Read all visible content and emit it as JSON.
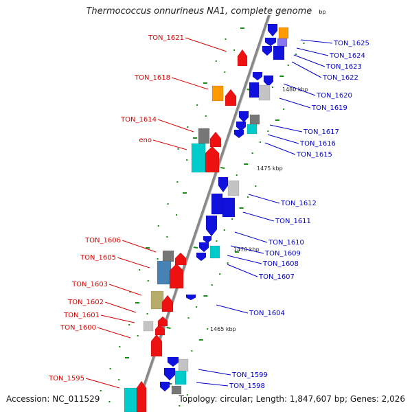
{
  "title": "Thermococcus onnurineus NA1, complete genome",
  "title_tail": "bp",
  "footer": {
    "accession": "Accession: NC_011529",
    "summary": "Topology: circular; Length: 1,847,607 bp; Genes: 2,026"
  },
  "colors": {
    "forward_gene": "#ee1111",
    "reverse_gene": "#1111dd",
    "cyan_gene": "#00cccc",
    "orange_gene": "#ff9900",
    "gray_gene": "#777777",
    "light_gray_gene": "#c4c4c4",
    "olive_gene": "#b7ad6a",
    "steel_gene": "#4682b4",
    "lavender_gene": "#8877ee",
    "left_label": "#dd0000",
    "right_label": "#0000cc",
    "gc_tick": "#1a8a1a",
    "backbone": "#888888"
  },
  "ticks": [
    {
      "label": "1480 kbp"
    },
    {
      "label": "1475 kbp"
    },
    {
      "label": "1470 kbp"
    },
    {
      "label": "1465 kbp"
    }
  ],
  "genes_left": [
    {
      "label": "TON_1621"
    },
    {
      "label": "TON_1618"
    },
    {
      "label": "TON_1614"
    },
    {
      "label": "eno"
    },
    {
      "label": "TON_1606"
    },
    {
      "label": "TON_1605"
    },
    {
      "label": "TON_1603"
    },
    {
      "label": "TON_1602"
    },
    {
      "label": "TON_1601"
    },
    {
      "label": "TON_1600"
    },
    {
      "label": "TON_1595"
    }
  ],
  "genes_right": [
    {
      "label": "TON_1625"
    },
    {
      "label": "TON_1624"
    },
    {
      "label": "TON_1623"
    },
    {
      "label": "TON_1622"
    },
    {
      "label": "TON_1620"
    },
    {
      "label": "TON_1619"
    },
    {
      "label": "TON_1617"
    },
    {
      "label": "TON_1616"
    },
    {
      "label": "TON_1615"
    },
    {
      "label": "TON_1612"
    },
    {
      "label": "TON_1611"
    },
    {
      "label": "TON_1610"
    },
    {
      "label": "TON_1609"
    },
    {
      "label": "TON_1608"
    },
    {
      "label": "TON_1607"
    },
    {
      "label": "TON_1604"
    },
    {
      "label": "TON_1599"
    },
    {
      "label": "TON_1598"
    }
  ]
}
